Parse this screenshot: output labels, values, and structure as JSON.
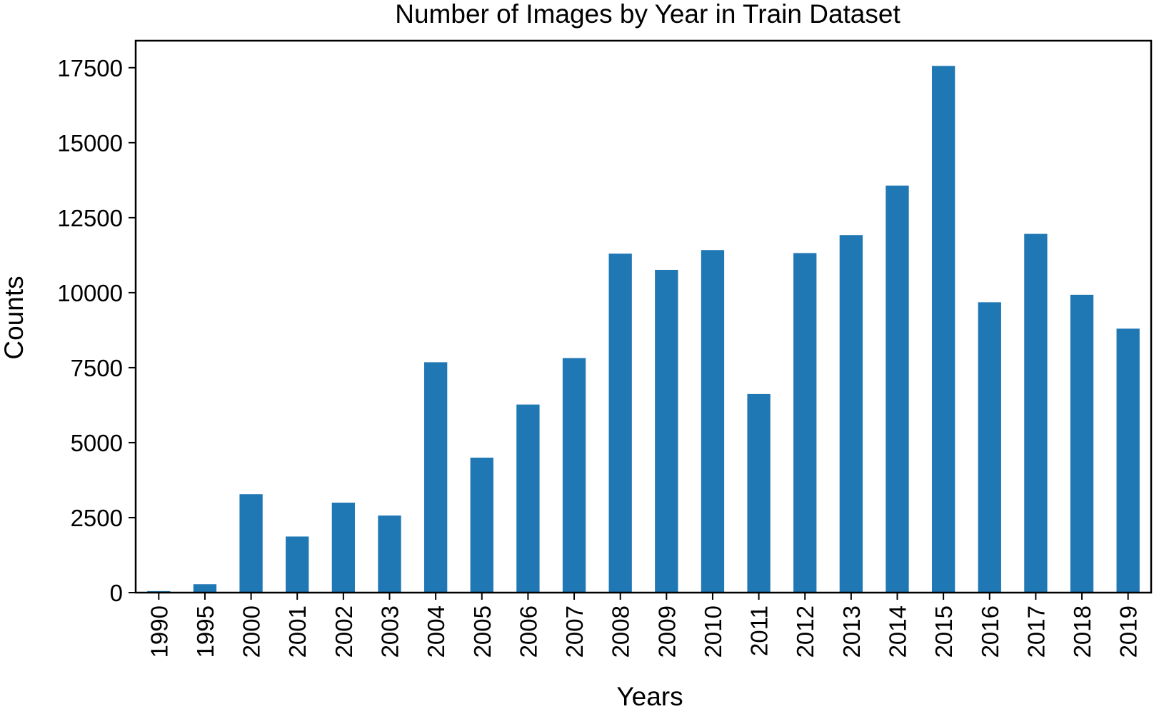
{
  "chart_data": {
    "type": "bar",
    "title": "Number of Images by Year in Train Dataset",
    "xlabel": "Years",
    "ylabel": "Counts",
    "categories": [
      "1990",
      "1995",
      "2000",
      "2001",
      "2002",
      "2003",
      "2004",
      "2005",
      "2006",
      "2007",
      "2008",
      "2009",
      "2010",
      "2011",
      "2012",
      "2013",
      "2014",
      "2015",
      "2016",
      "2017",
      "2018",
      "2019"
    ],
    "values": [
      50,
      280,
      3280,
      1870,
      3000,
      2570,
      7680,
      4500,
      6270,
      7820,
      11300,
      10760,
      11420,
      6620,
      11320,
      11920,
      13570,
      17560,
      9680,
      11960,
      9930,
      8800
    ],
    "yticks": [
      0,
      2500,
      5000,
      7500,
      10000,
      12500,
      15000,
      17500
    ],
    "ylim": [
      0,
      18400
    ],
    "bar_color": "#1f77b4",
    "grid": false,
    "legend": "none"
  }
}
